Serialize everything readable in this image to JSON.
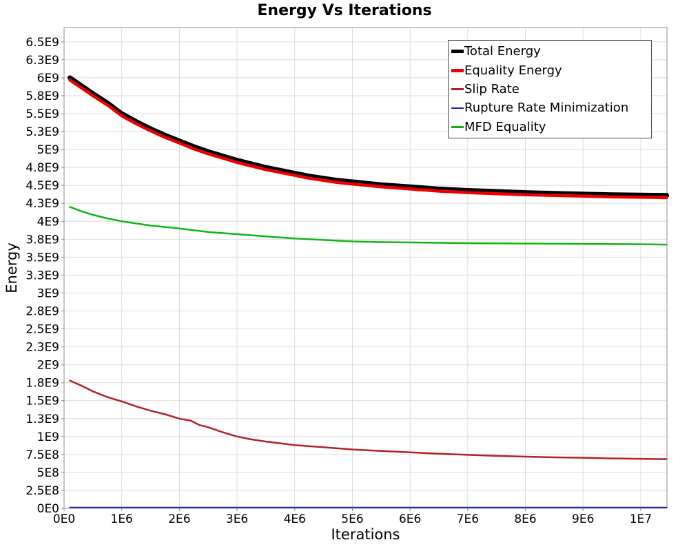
{
  "title": "Energy Vs Iterations",
  "axes": {
    "x_label": "Iterations",
    "y_label": "Energy"
  },
  "colors": {
    "grid": "#DCDCDC",
    "plot_border": "#A0A0A0",
    "tick": "#888888",
    "legend_border": "#444444",
    "background": "#FFFFFF"
  },
  "chart_data": {
    "type": "line",
    "title": "Energy Vs Iterations",
    "xlabel": "Iterations",
    "ylabel": "Energy",
    "xlim": [
      0,
      10455000
    ],
    "ylim": [
      0,
      6700000000
    ],
    "grid": true,
    "legend_position": "top-right",
    "x_ticks": [
      {
        "v": 0,
        "label": "0E0"
      },
      {
        "v": 1000000,
        "label": "1E6"
      },
      {
        "v": 2000000,
        "label": "2E6"
      },
      {
        "v": 3000000,
        "label": "3E6"
      },
      {
        "v": 4000000,
        "label": "4E6"
      },
      {
        "v": 5000000,
        "label": "5E6"
      },
      {
        "v": 6000000,
        "label": "6E6"
      },
      {
        "v": 7000000,
        "label": "7E6"
      },
      {
        "v": 8000000,
        "label": "8E6"
      },
      {
        "v": 9000000,
        "label": "9E6"
      },
      {
        "v": 10000000,
        "label": "1E7"
      }
    ],
    "y_ticks": [
      {
        "v": 0,
        "label": "0E0"
      },
      {
        "v": 250000000,
        "label": "2.5E8"
      },
      {
        "v": 500000000,
        "label": "5E8"
      },
      {
        "v": 750000000,
        "label": "7.5E8"
      },
      {
        "v": 1000000000,
        "label": "1E9"
      },
      {
        "v": 1250000000,
        "label": "1.3E9"
      },
      {
        "v": 1500000000,
        "label": "1.5E9"
      },
      {
        "v": 1750000000,
        "label": "1.8E9"
      },
      {
        "v": 2000000000,
        "label": "2E9"
      },
      {
        "v": 2250000000,
        "label": "2.3E9"
      },
      {
        "v": 2500000000,
        "label": "2.5E9"
      },
      {
        "v": 2750000000,
        "label": "2.8E9"
      },
      {
        "v": 3000000000,
        "label": "3E9"
      },
      {
        "v": 3250000000,
        "label": "3.3E9"
      },
      {
        "v": 3500000000,
        "label": "3.5E9"
      },
      {
        "v": 3750000000,
        "label": "3.8E9"
      },
      {
        "v": 4000000000,
        "label": "4E9"
      },
      {
        "v": 4250000000,
        "label": "4.3E9"
      },
      {
        "v": 4500000000,
        "label": "4.5E9"
      },
      {
        "v": 4750000000,
        "label": "4.8E9"
      },
      {
        "v": 5000000000,
        "label": "5E9"
      },
      {
        "v": 5250000000,
        "label": "5.3E9"
      },
      {
        "v": 5500000000,
        "label": "5.5E9"
      },
      {
        "v": 5750000000,
        "label": "5.8E9"
      },
      {
        "v": 6000000000,
        "label": "6E9"
      },
      {
        "v": 6250000000,
        "label": "6.3E9"
      },
      {
        "v": 6500000000,
        "label": "6.5E9"
      }
    ],
    "series": [
      {
        "name": "Total Energy",
        "color": "#000000",
        "stroke_width": 7,
        "legend_thickness": 5,
        "x": [
          100000,
          300000,
          500000,
          750000,
          1000000,
          1250000,
          1500000,
          1750000,
          2000000,
          2250000,
          2500000,
          2750000,
          3000000,
          3250000,
          3500000,
          3750000,
          4000000,
          4250000,
          4500000,
          4750000,
          5000000,
          5500000,
          6000000,
          6500000,
          7000000,
          7500000,
          8000000,
          8500000,
          9000000,
          9500000,
          10000000,
          10450000
        ],
        "y": [
          6000000000.0,
          5890000000.0,
          5780000000.0,
          5650000000.0,
          5500000000.0,
          5390000000.0,
          5290000000.0,
          5200000000.0,
          5120000000.0,
          5040000000.0,
          4970000000.0,
          4910000000.0,
          4850000000.0,
          4800000000.0,
          4750000000.0,
          4710000000.0,
          4670000000.0,
          4630000000.0,
          4600000000.0,
          4570000000.0,
          4550000000.0,
          4510000000.0,
          4480000000.0,
          4450000000.0,
          4430000000.0,
          4415000000.0,
          4400000000.0,
          4390000000.0,
          4380000000.0,
          4370000000.0,
          4365000000.0,
          4360000000.0
        ]
      },
      {
        "name": "Equality Energy",
        "color": "#EE0000",
        "stroke_width": 4.5,
        "legend_thickness": 5,
        "x": [
          100000,
          300000,
          500000,
          750000,
          1000000,
          1250000,
          1500000,
          1750000,
          2000000,
          2250000,
          2500000,
          2750000,
          3000000,
          3250000,
          3500000,
          3750000,
          4000000,
          4250000,
          4500000,
          4750000,
          5000000,
          5500000,
          6000000,
          6500000,
          7000000,
          7500000,
          8000000,
          8500000,
          9000000,
          9500000,
          10000000,
          10450000
        ],
        "y": [
          5970000000.0,
          5860000000.0,
          5750000000.0,
          5620000000.0,
          5470000000.0,
          5360000000.0,
          5260000000.0,
          5170000000.0,
          5090000000.0,
          5010000000.0,
          4940000000.0,
          4880000000.0,
          4820000000.0,
          4770000000.0,
          4720000000.0,
          4680000000.0,
          4640000000.0,
          4600000000.0,
          4570000000.0,
          4540000000.0,
          4520000000.0,
          4480000000.0,
          4450000000.0,
          4420000000.0,
          4400000000.0,
          4385000000.0,
          4370000000.0,
          4360000000.0,
          4350000000.0,
          4340000000.0,
          4335000000.0,
          4330000000.0
        ]
      },
      {
        "name": "Slip Rate",
        "color": "#B22222",
        "stroke_width": 2.5,
        "legend_thickness": 2.5,
        "x": [
          100000,
          300000,
          500000,
          750000,
          1000000,
          1250000,
          1500000,
          1750000,
          2000000,
          2200000,
          2350000,
          2500000,
          2750000,
          3000000,
          3250000,
          3500000,
          4000000,
          4500000,
          5000000,
          5500000,
          6000000,
          6500000,
          7000000,
          7500000,
          8000000,
          8500000,
          9000000,
          9500000,
          10000000,
          10450000
        ],
        "y": [
          1780000000.0,
          1710000000.0,
          1630000000.0,
          1550000000.0,
          1490000000.0,
          1420000000.0,
          1360000000.0,
          1310000000.0,
          1250000000.0,
          1220000000.0,
          1160000000.0,
          1130000000.0,
          1060000000.0,
          1000000000.0,
          960000000.0,
          930000000.0,
          880000000.0,
          850000000.0,
          820000000.0,
          800000000.0,
          780000000.0,
          760000000.0,
          745000000.0,
          730000000.0,
          720000000.0,
          710000000.0,
          705000000.0,
          695000000.0,
          690000000.0,
          685000000.0
        ]
      },
      {
        "name": "Rupture Rate Minimization",
        "color": "#2222B2",
        "stroke_width": 2,
        "legend_thickness": 2.5,
        "x": [
          100000,
          10450000
        ],
        "y": [
          12000000.0,
          12000000.0
        ]
      },
      {
        "name": "MFD Equality",
        "color": "#11B411",
        "stroke_width": 2.5,
        "legend_thickness": 2.5,
        "x": [
          100000,
          300000,
          500000,
          750000,
          1000000,
          1500000,
          2000000,
          2500000,
          3000000,
          3500000,
          4000000,
          4500000,
          5000000,
          5500000,
          6000000,
          6500000,
          7000000,
          8000000,
          9000000,
          10000000,
          10450000
        ],
        "y": [
          4200000000.0,
          4140000000.0,
          4090000000.0,
          4040000000.0,
          4000000000.0,
          3940000000.0,
          3900000000.0,
          3850000000.0,
          3820000000.0,
          3790000000.0,
          3760000000.0,
          3740000000.0,
          3720000000.0,
          3710000000.0,
          3705000000.0,
          3700000000.0,
          3695000000.0,
          3690000000.0,
          3685000000.0,
          3680000000.0,
          3675000000.0
        ]
      }
    ]
  }
}
